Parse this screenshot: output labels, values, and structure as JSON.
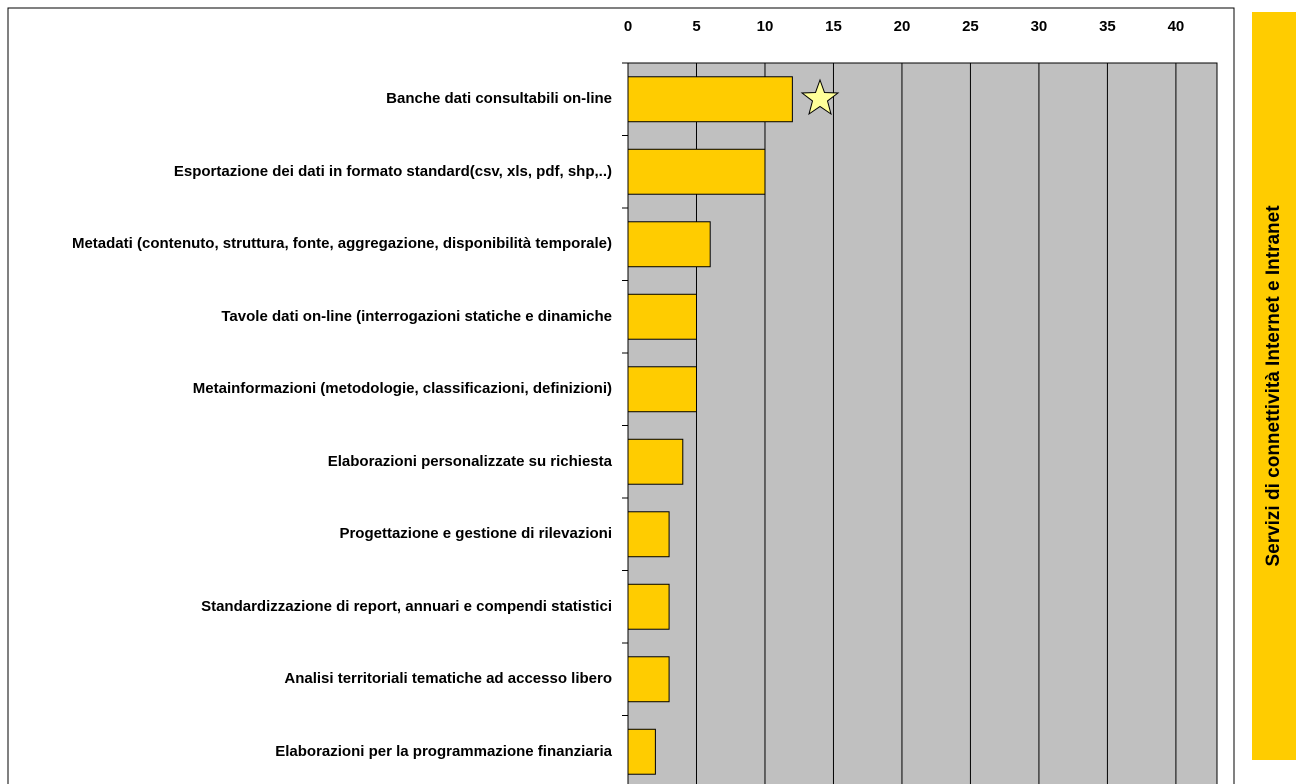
{
  "chart_data": {
    "type": "bar",
    "orientation": "horizontal",
    "categories": [
      "Banche dati consultabili on-line",
      "Esportazione dei dati in formato standard(csv, xls, pdf, shp,..)",
      "Metadati (contenuto, struttura, fonte, aggregazione, disponibilità temporale)",
      "Tavole dati on-line (interrogazioni statiche e dinamiche",
      "Metainformazioni (metodologie, classificazioni, definizioni)",
      "Elaborazioni personalizzate su richiesta",
      "Progettazione e gestione di rilevazioni",
      "Standardizzazione di report, annuari e compendi statistici",
      "Analisi territoriali tematiche ad accesso libero",
      "Elaborazioni per la programmazione finanziaria"
    ],
    "values": [
      12,
      10,
      6,
      5,
      5,
      4,
      3,
      3,
      3,
      2
    ],
    "color": "#ffcc00",
    "xlim": [
      0,
      43
    ],
    "xticks": [
      0,
      5,
      10,
      15,
      20,
      25,
      30,
      35,
      40
    ],
    "grid": true,
    "side_label": "Servizi di connettività Internet e Intranet"
  }
}
